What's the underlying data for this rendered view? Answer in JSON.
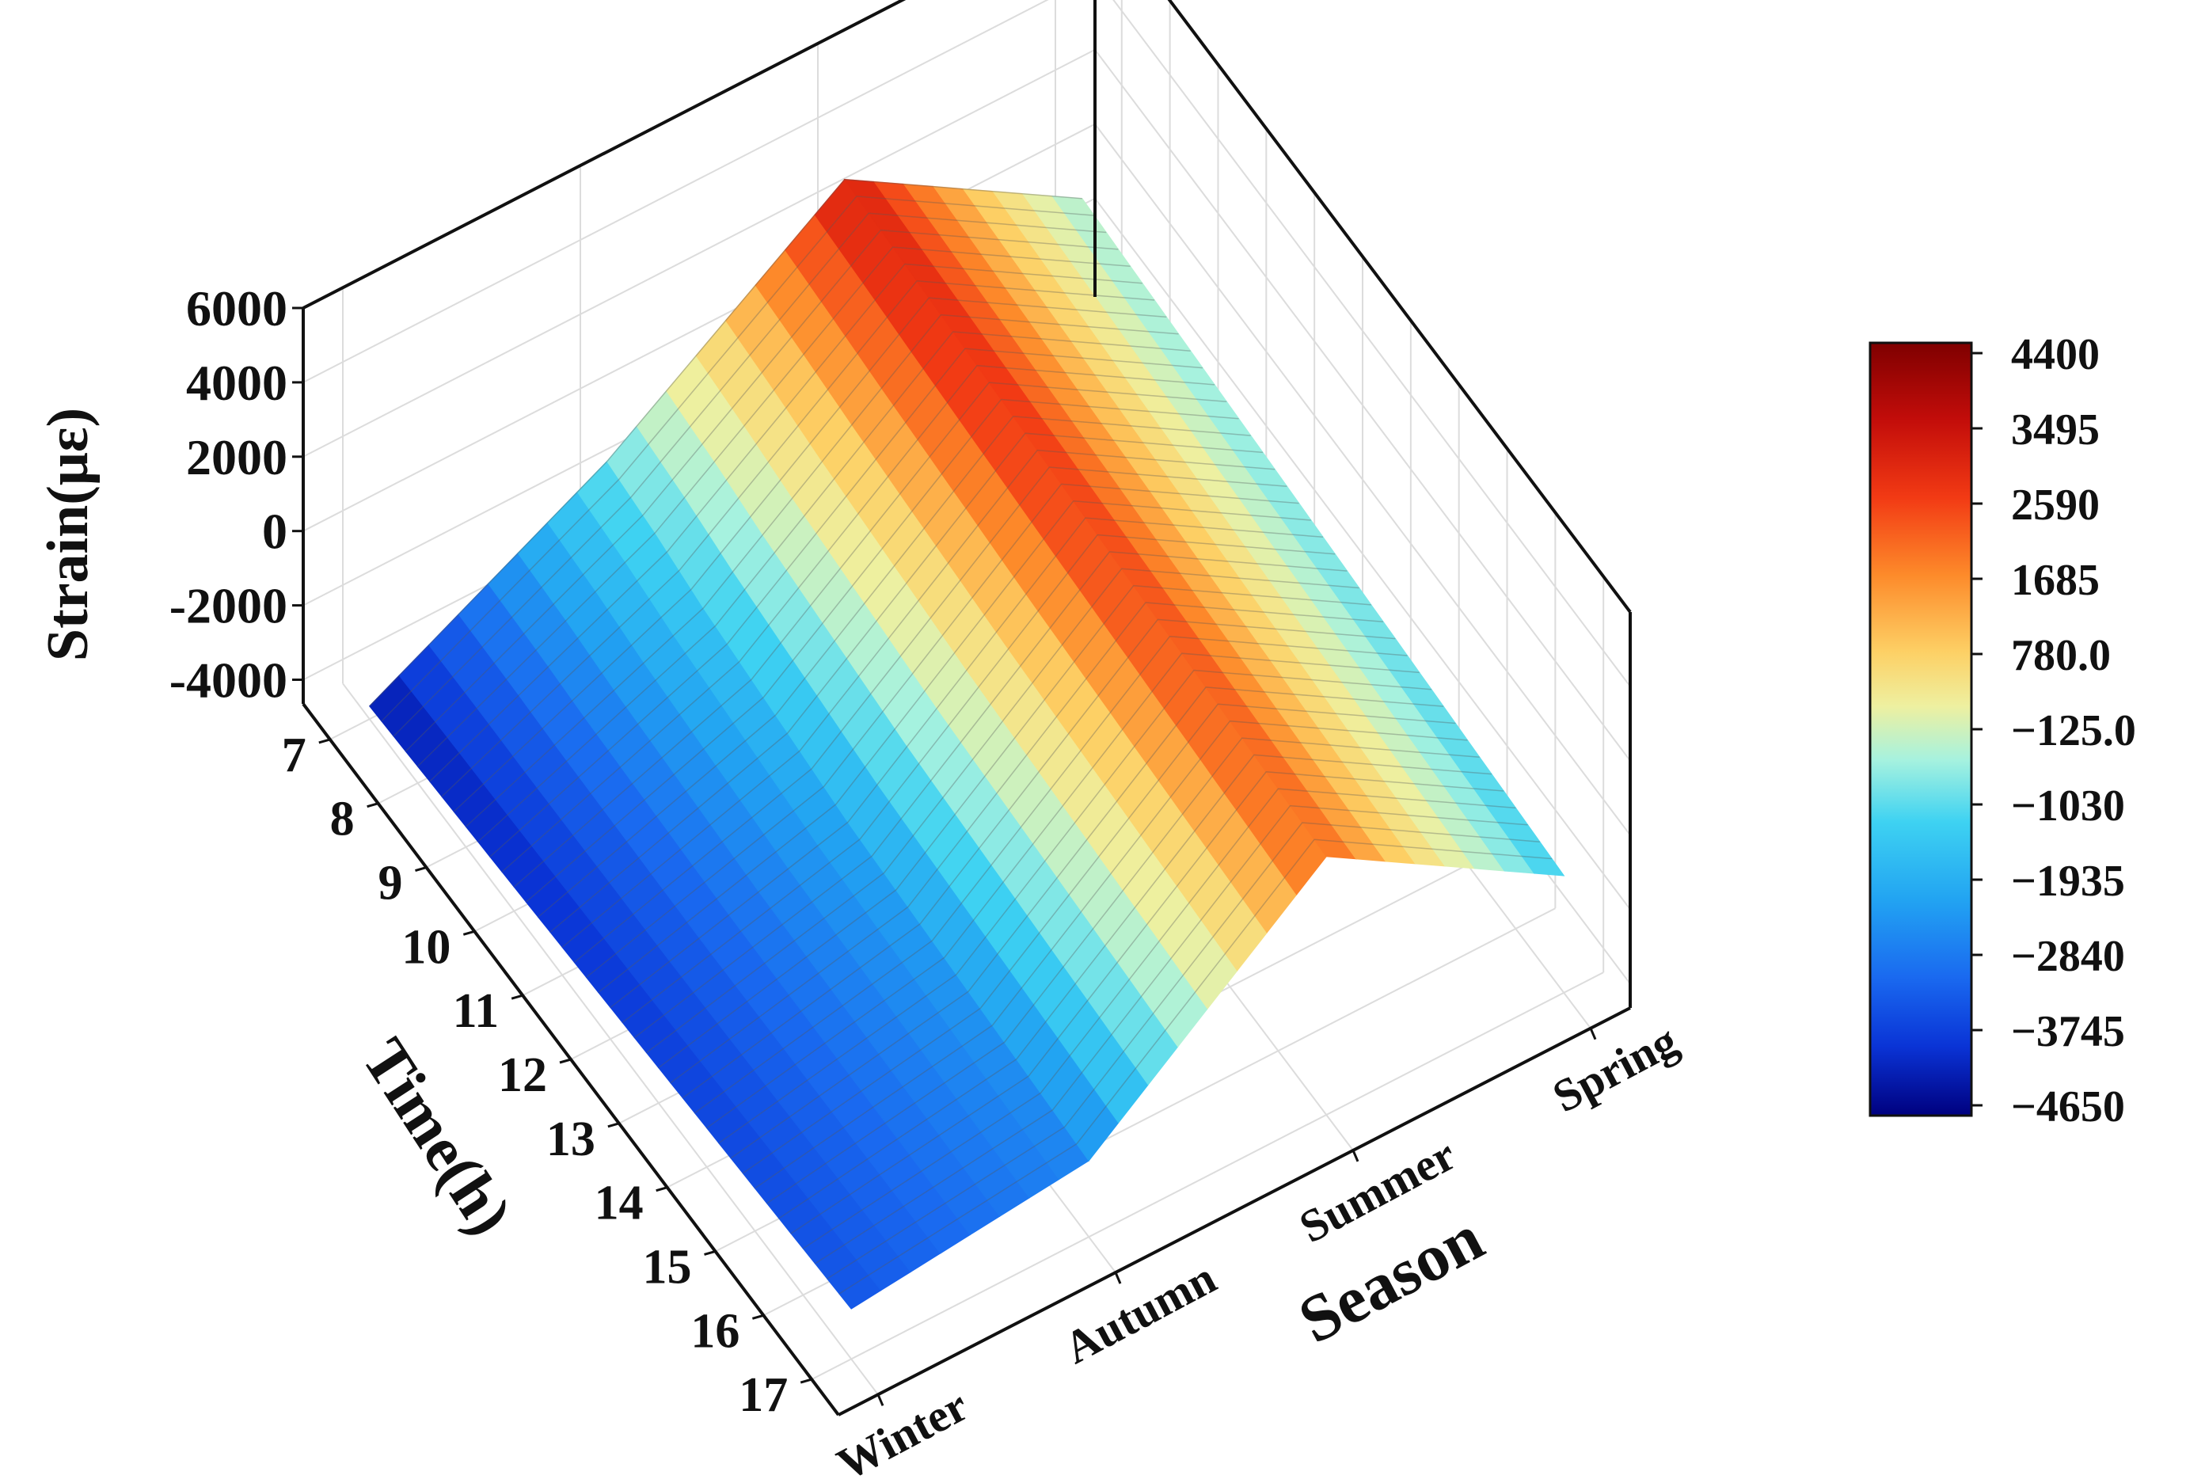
{
  "chart_data": {
    "type": "surface3d",
    "xlabel": "Season",
    "ylabel": "Time(h)",
    "zlabel": "Strain(με)",
    "seasons": [
      "Winter",
      "Autumn",
      "Summer",
      "Spring"
    ],
    "times": [
      "7",
      "8",
      "9",
      "10",
      "11",
      "12",
      "13",
      "14",
      "15",
      "16",
      "17"
    ],
    "zticks": [
      "6000",
      "4000",
      "2000",
      "0",
      "-2000",
      "-4000"
    ],
    "zlim": [
      -4650,
      6000
    ],
    "colorbar_ticks": [
      "4400",
      "3495",
      "2590",
      "1685",
      "780.0",
      "−125.0",
      "−1030",
      "−1935",
      "−2840",
      "−3745",
      "−4650"
    ],
    "colorbar_range": [
      -4650,
      4400
    ],
    "grid": true,
    "colorscale": [
      "#00007f",
      "#0a34d6",
      "#1a6af0",
      "#22a4f2",
      "#3ed2f2",
      "#a6f2df",
      "#eef0a0",
      "#fdd065",
      "#fd8a2a",
      "#f23a14",
      "#c30d0a",
      "#7f0000"
    ],
    "strain_estimates": {
      "Winter": [
        -4300,
        -4200,
        -4100,
        -4000,
        -3900,
        -3800,
        -3700,
        -3600,
        -3500,
        -3400,
        -3300
      ],
      "Autumn": [
        -1000,
        -1200,
        -1500,
        -1700,
        -1900,
        -2100,
        -2200,
        -2300,
        -2400,
        -2500,
        -2600
      ],
      "Summer": [
        3300,
        3200,
        3100,
        3000,
        2900,
        2800,
        2700,
        2600,
        2500,
        2400,
        2300
      ],
      "Spring": [
        -500,
        -600,
        -700,
        -800,
        -900,
        -1000,
        -1100,
        -1200,
        -1300,
        -1400,
        -1500
      ]
    }
  }
}
